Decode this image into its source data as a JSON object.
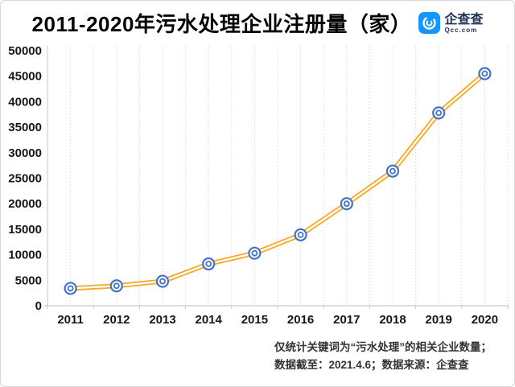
{
  "header": {
    "title": "2011-2020年污水处理企业注册量（家）"
  },
  "logo": {
    "name": "企查查",
    "domain": "Qcc.com",
    "brand_blue": "#1795FF",
    "text_color": "#1c2f52"
  },
  "chart_data": {
    "type": "line",
    "title": "2011-2020年污水处理企业注册量（家）",
    "categories": [
      "2011",
      "2012",
      "2013",
      "2014",
      "2015",
      "2016",
      "2017",
      "2018",
      "2019",
      "2020"
    ],
    "series": [
      {
        "name": "污水处理企业注册量",
        "values": [
          3400,
          3900,
          4800,
          8200,
          10300,
          13900,
          20000,
          26400,
          37800,
          45500
        ]
      }
    ],
    "xlabel": "",
    "ylabel": "",
    "ylim": [
      0,
      50000
    ],
    "yticks": [
      0,
      5000,
      10000,
      15000,
      20000,
      25000,
      30000,
      35000,
      40000,
      45000,
      50000
    ],
    "grid": "vertical-dotted",
    "legend": "none",
    "line_color": "#F7A824",
    "line_core_color": "#FFFFFF",
    "marker_color": "#4472C4",
    "marker_fill": "#FFFFFF",
    "grid_color": "#D9D9D9",
    "axis_color": "#C9C9C9",
    "tick_label_color": "#161616"
  },
  "footnote": {
    "line1": "仅统计关键词为“污水处理”的相关企业数量；",
    "line2": "数据截至：2021.4.6；数据来源：企查查"
  }
}
